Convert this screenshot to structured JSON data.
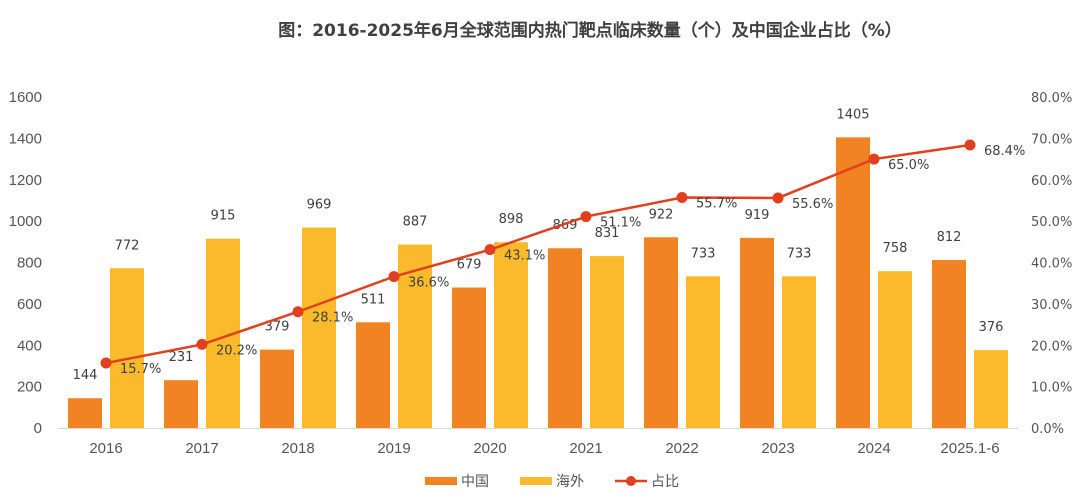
{
  "chart_data": {
    "type": "bar",
    "title": "图：2016-2025年6月全球范围内热门靶点临床数量（个）及中国企业占比（%）",
    "categories": [
      "2016",
      "2017",
      "2018",
      "2019",
      "2020",
      "2021",
      "2022",
      "2023",
      "2024",
      "2025.1-6"
    ],
    "series": [
      {
        "name": "中国",
        "type": "bar",
        "axis": "left",
        "color": "#F28322",
        "values": [
          144,
          231,
          379,
          511,
          679,
          869,
          922,
          919,
          1405,
          812
        ],
        "labels": [
          "144",
          "231",
          "379",
          "511",
          "679",
          "869",
          "922",
          "919",
          "1405",
          "812"
        ]
      },
      {
        "name": "海外",
        "type": "bar",
        "axis": "left",
        "color": "#FBBA2B",
        "values": [
          772,
          915,
          969,
          887,
          898,
          831,
          733,
          733,
          758,
          376
        ],
        "labels": [
          "772",
          "915",
          "969",
          "887",
          "898",
          "831",
          "733",
          "733",
          "758",
          "376"
        ]
      },
      {
        "name": "占比",
        "type": "line",
        "axis": "right",
        "color": "#E0401E",
        "values": [
          15.7,
          20.2,
          28.1,
          36.6,
          43.1,
          51.1,
          55.7,
          55.6,
          65.0,
          68.4
        ],
        "labels": [
          "15.7%",
          "20.2%",
          "28.1%",
          "36.6%",
          "43.1%",
          "51.1%",
          "55.7%",
          "55.6%",
          "65.0%",
          "68.4%"
        ]
      }
    ],
    "xlabel": "",
    "ylabel": "",
    "ylim": [
      0,
      1600
    ],
    "y_ticks": [
      "0",
      "200",
      "400",
      "600",
      "800",
      "1000",
      "1200",
      "1400",
      "1600"
    ],
    "y2lim": [
      0,
      80
    ],
    "y2_ticks": [
      "0.0%",
      "10.0%",
      "20.0%",
      "30.0%",
      "40.0%",
      "50.0%",
      "60.0%",
      "70.0%",
      "80.0%"
    ],
    "grid": false,
    "legend_position": "bottom-center",
    "legend": [
      "中国",
      "海外",
      "占比"
    ]
  }
}
